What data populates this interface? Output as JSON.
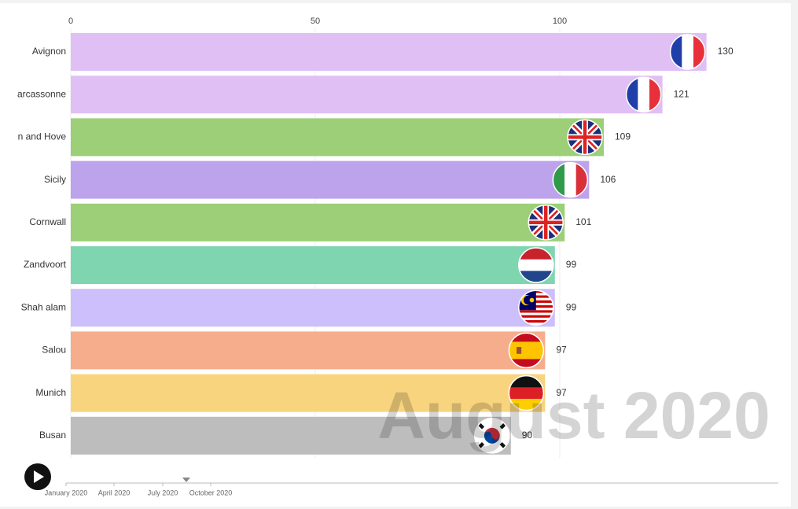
{
  "chart_data": {
    "type": "bar",
    "orientation": "horizontal",
    "categories": [
      "Avignon",
      "arcassonne",
      "n and Hove",
      "Sicily",
      "Cornwall",
      "Zandvoort",
      "Shah alam",
      "Salou",
      "Munich",
      "Busan"
    ],
    "values": [
      130,
      121,
      109,
      106,
      101,
      99,
      99,
      97,
      97,
      90
    ],
    "colors": [
      "#e0bff5",
      "#e0bff5",
      "#9ccf78",
      "#bca3eb",
      "#9ccf78",
      "#7fd5b0",
      "#cdbffb",
      "#f5ad8c",
      "#f8d47f",
      "#bdbdbd"
    ],
    "xlim": [
      0,
      140
    ],
    "xticks": [
      0,
      50,
      100
    ],
    "grid": true,
    "date_label": "August 2020",
    "timeline": [
      "January 2020",
      "April 2020",
      "July 2020",
      "October 2020"
    ]
  }
}
